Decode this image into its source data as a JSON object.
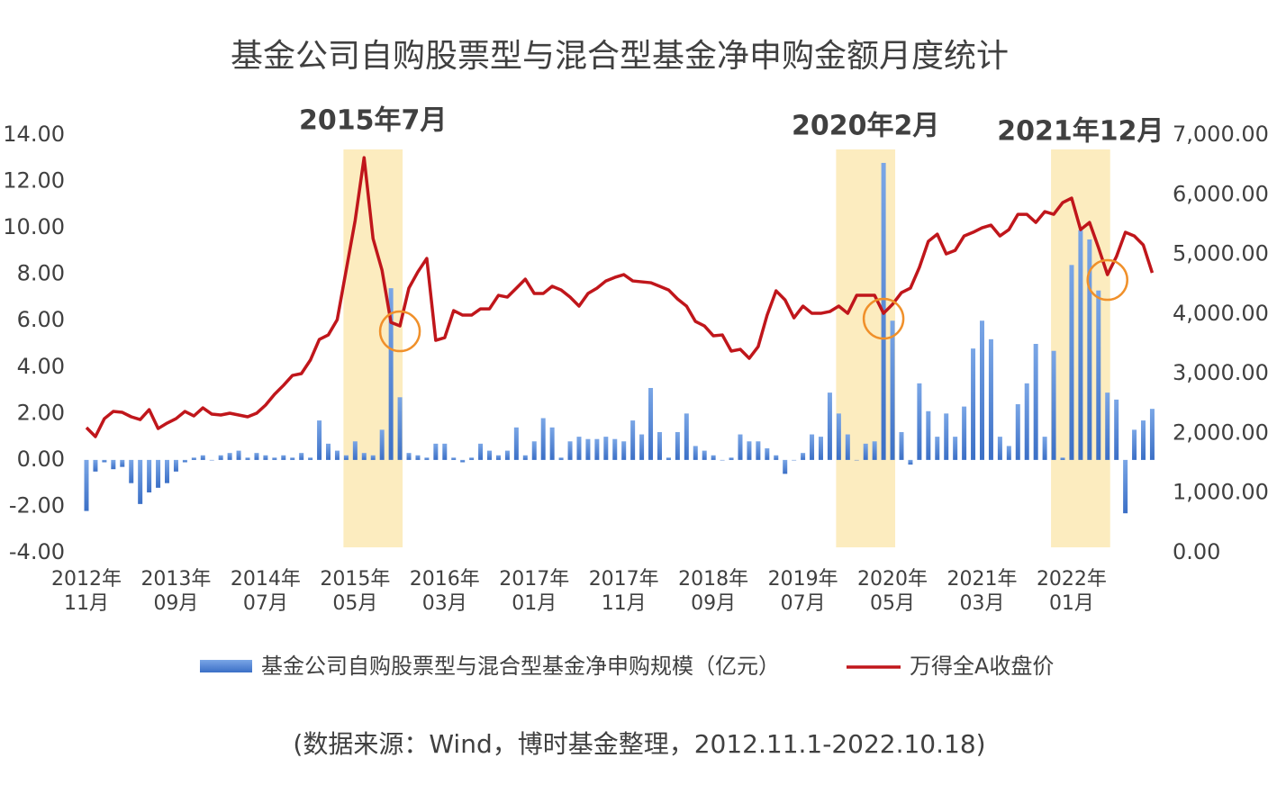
{
  "chart_data": {
    "type": "bar-line",
    "title": "基金公司自购股票型与混合型基金净申购金额月度统计",
    "source": "(数据来源：Wind，博时基金整理，2012.11.1-2022.10.18)",
    "annotations": [
      "2015年7月",
      "2020年2月",
      "2021年12月"
    ],
    "categories": [
      "2012年\n11月",
      null,
      null,
      null,
      null,
      null,
      null,
      null,
      null,
      null,
      "2013年\n09月",
      null,
      null,
      null,
      null,
      null,
      null,
      null,
      null,
      null,
      "2014年\n07月",
      null,
      null,
      null,
      null,
      null,
      null,
      null,
      null,
      null,
      "2015年\n05月",
      null,
      null,
      null,
      null,
      null,
      null,
      null,
      null,
      null,
      "2016年\n03月",
      null,
      null,
      null,
      null,
      null,
      null,
      null,
      null,
      null,
      "2017年\n01月",
      null,
      null,
      null,
      null,
      null,
      null,
      null,
      null,
      null,
      "2017年\n11月",
      null,
      null,
      null,
      null,
      null,
      null,
      null,
      null,
      null,
      "2018年\n09月",
      null,
      null,
      null,
      null,
      null,
      null,
      null,
      null,
      null,
      "2019年\n07月",
      null,
      null,
      null,
      null,
      null,
      null,
      null,
      null,
      null,
      "2020年\n05月",
      null,
      null,
      null,
      null,
      null,
      null,
      null,
      null,
      null,
      "2021年\n03月",
      null,
      null,
      null,
      null,
      null,
      null,
      null,
      null,
      null,
      "2022年\n01月",
      null,
      null,
      null,
      null,
      null,
      null,
      null,
      null,
      null
    ],
    "series": [
      {
        "name": "基金公司自购股票型与混合型基金净申购规模（亿元）",
        "type": "bar",
        "color": "#4a7fd4",
        "values": [
          -2.2,
          -0.5,
          -0.1,
          -0.4,
          -0.3,
          -1.0,
          -1.9,
          -1.4,
          -1.2,
          -1.0,
          -0.5,
          -0.1,
          0.1,
          0.2,
          0.0,
          0.2,
          0.3,
          0.4,
          0.1,
          0.3,
          0.2,
          0.1,
          0.2,
          0.1,
          0.3,
          0.1,
          1.7,
          0.7,
          0.4,
          0.2,
          0.8,
          0.3,
          0.2,
          1.3,
          7.4,
          2.7,
          0.3,
          0.2,
          0.1,
          0.7,
          0.7,
          0.1,
          -0.1,
          0.1,
          0.7,
          0.4,
          0.2,
          0.4,
          1.4,
          0.2,
          0.8,
          1.8,
          1.4,
          0.1,
          0.8,
          1.0,
          0.9,
          0.9,
          1.0,
          0.9,
          0.8,
          1.7,
          1.1,
          3.1,
          1.2,
          0.1,
          1.2,
          2.0,
          0.6,
          0.4,
          0.2,
          0.0,
          0.1,
          1.1,
          0.8,
          0.8,
          0.5,
          0.2,
          -0.6,
          0.0,
          0.3,
          1.1,
          1.0,
          2.9,
          2.0,
          1.1,
          0.0,
          0.7,
          0.8,
          12.8,
          6.0,
          1.2,
          -0.2,
          3.3,
          2.1,
          1.0,
          2.0,
          1.0,
          2.3,
          4.8,
          6.0,
          5.2,
          1.0,
          0.6,
          2.4,
          3.3,
          5.0,
          1.0,
          4.7,
          0.1,
          8.4,
          9.9,
          9.5,
          7.3,
          2.9,
          2.6,
          -2.3,
          1.3,
          1.7,
          2.2
        ]
      },
      {
        "name": "万得全A收盘价",
        "type": "line",
        "axis": "y2",
        "color": "#c0161b",
        "values": [
          2097,
          1946,
          2247,
          2368,
          2353,
          2278,
          2232,
          2398,
          2081,
          2172,
          2247,
          2368,
          2293,
          2428,
          2323,
          2308,
          2338,
          2308,
          2278,
          2338,
          2474,
          2655,
          2805,
          2971,
          3002,
          3228,
          3575,
          3650,
          3906,
          4736,
          5566,
          6621,
          5264,
          4736,
          3861,
          3801,
          4434,
          4706,
          4932,
          3560,
          3605,
          4057,
          3982,
          3982,
          4087,
          4087,
          4314,
          4284,
          4434,
          4585,
          4344,
          4344,
          4465,
          4404,
          4284,
          4133,
          4344,
          4434,
          4555,
          4615,
          4661,
          4555,
          4540,
          4525,
          4465,
          4404,
          4253,
          4133,
          3876,
          3801,
          3635,
          3650,
          3379,
          3409,
          3258,
          3454,
          3982,
          4389,
          4238,
          3937,
          4133,
          4012,
          4012,
          4042,
          4133,
          4012,
          4314,
          4314,
          4314,
          4012,
          4163,
          4359,
          4434,
          4781,
          5219,
          5339,
          5008,
          5068,
          5309,
          5370,
          5445,
          5490,
          5309,
          5415,
          5671,
          5671,
          5535,
          5716,
          5671,
          5867,
          5943,
          5415,
          5535,
          5113,
          4661,
          4962,
          5370,
          5309,
          5158,
          4691
        ]
      }
    ],
    "ylim": [
      -4,
      14
    ],
    "yticks": [
      {
        "value": -4,
        "label": "-4.00"
      },
      {
        "value": -2,
        "label": "-2.00"
      },
      {
        "value": 0,
        "label": "0.00"
      },
      {
        "value": 2,
        "label": "2.00"
      },
      {
        "value": 4,
        "label": "4.00"
      },
      {
        "value": 6,
        "label": "6.00"
      },
      {
        "value": 8,
        "label": "8.00"
      },
      {
        "value": 10,
        "label": "10.00"
      },
      {
        "value": 12,
        "label": "12.00"
      },
      {
        "value": 14,
        "label": "14.00"
      }
    ],
    "y2lim": [
      0,
      7000
    ],
    "y2ticks": [
      {
        "value": 0,
        "label": "0.00"
      },
      {
        "value": 1000,
        "label": "1,000.00"
      },
      {
        "value": 2000,
        "label": "2,000.00"
      },
      {
        "value": 3000,
        "label": "3,000.00"
      },
      {
        "value": 4000,
        "label": "4,000.00"
      },
      {
        "value": 5000,
        "label": "5,000.00"
      },
      {
        "value": 6000,
        "label": "6,000.00"
      },
      {
        "value": 7000,
        "label": "7,000.00"
      }
    ]
  }
}
